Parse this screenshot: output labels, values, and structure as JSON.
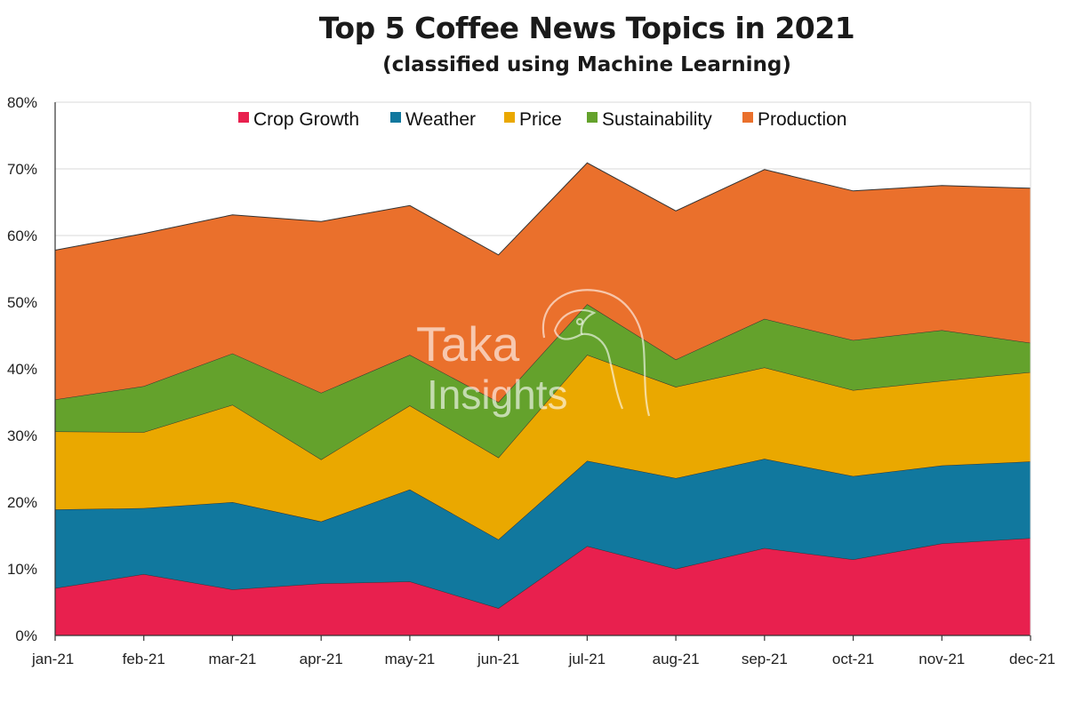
{
  "chart_data": {
    "type": "area",
    "stacked": true,
    "title": "Top 5 Coffee News Topics in 2021",
    "subtitle": "(classified using Machine Learning)",
    "categories": [
      "jan-21",
      "feb-21",
      "mar-21",
      "apr-21",
      "may-21",
      "jun-21",
      "jul-21",
      "aug-21",
      "sep-21",
      "oct-21",
      "nov-21",
      "dec-21"
    ],
    "y_ticks": [
      "0%",
      "10%",
      "20%",
      "30%",
      "40%",
      "50%",
      "60%",
      "70%",
      "80%"
    ],
    "ylim": [
      0,
      80
    ],
    "y_unit": "%",
    "grid": "horizontal",
    "legend_position": "top",
    "series": [
      {
        "name": "Crop Growth",
        "color": "#E8204E",
        "values": [
          7.1,
          9.2,
          6.9,
          7.8,
          8.1,
          4.1,
          13.4,
          10.0,
          13.1,
          11.4,
          13.8,
          14.6
        ]
      },
      {
        "name": "Weather",
        "color": "#11789E",
        "values": [
          11.8,
          9.9,
          13.1,
          9.3,
          13.8,
          10.3,
          12.8,
          13.6,
          13.4,
          12.5,
          11.7,
          11.5
        ]
      },
      {
        "name": "Price",
        "color": "#EAA800",
        "values": [
          11.7,
          11.4,
          14.6,
          9.3,
          12.6,
          12.3,
          15.9,
          13.7,
          13.7,
          12.9,
          12.7,
          13.4
        ]
      },
      {
        "name": "Sustainability",
        "color": "#64A22C",
        "values": [
          4.8,
          6.9,
          7.7,
          10.0,
          7.6,
          8.3,
          7.6,
          4.1,
          7.3,
          7.5,
          7.6,
          4.4
        ]
      },
      {
        "name": "Production",
        "color": "#EA702C",
        "values": [
          22.4,
          22.9,
          20.8,
          25.7,
          22.4,
          22.1,
          21.2,
          22.3,
          22.4,
          22.4,
          21.7,
          23.2
        ]
      }
    ]
  },
  "watermark": {
    "line1": "Taka",
    "line2": "Insights",
    "icon": "eagle-head-logo"
  },
  "colors": {
    "outline": "#333333",
    "grid": "#d9d9d9",
    "axis": "#333333"
  }
}
